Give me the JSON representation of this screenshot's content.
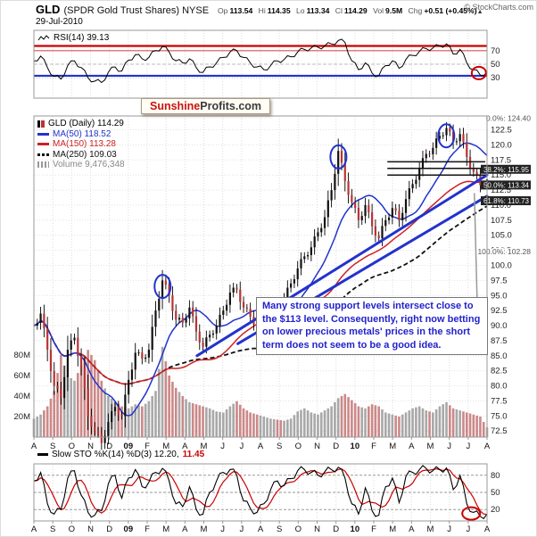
{
  "header": {
    "symbol": "GLD",
    "name": "(SPDR Gold Trust Shares) NYSE",
    "date": "29-Jul-2010",
    "copyright": "© StockCharts.com",
    "quote": {
      "op_label": "Op",
      "op": "113.54",
      "hi_label": "Hi",
      "hi": "114.35",
      "lo_label": "Lo",
      "lo": "113.34",
      "cl_label": "Cl",
      "cl": "114.29",
      "vol_label": "Vol",
      "vol": "9.5M",
      "chg_label": "Chg",
      "chg": "+0.51 (+0.45%)"
    }
  },
  "logo": {
    "part1": "Sunshine",
    "part2": "Profits.com"
  },
  "rsi_panel": {
    "label": "RSI(14) 39.13",
    "axis_labels": [
      "70",
      "50",
      "30"
    ]
  },
  "main_panel": {
    "legend": [
      {
        "label": "GLD (Daily) 114.29",
        "color": "#000000"
      },
      {
        "label": "MA(50) 118.52",
        "color": "#2233cc"
      },
      {
        "label": "MA(150) 113.28",
        "color": "#cc2222"
      },
      {
        "label": "MA(250) 109.03",
        "color": "#111111"
      },
      {
        "label": "Volume 9,476,348",
        "color": "#888888"
      }
    ],
    "y_axis": [
      "122.5",
      "120.0",
      "117.5",
      "115.0",
      "112.5",
      "110.0",
      "107.5",
      "105.0",
      "102.5",
      "100.0",
      "97.5",
      "95.0",
      "92.5",
      "90.0",
      "87.5",
      "85.0",
      "82.5",
      "80.0",
      "77.5",
      "75.0",
      "72.5"
    ],
    "vol_axis": [
      "80M",
      "60M",
      "40M",
      "20M"
    ],
    "fib_labels": [
      "0.0%: 124.40",
      "38.2%: 115.95",
      "50.0%: 113.34",
      "61.8%: 110.73",
      "100.0%: 102.28"
    ],
    "annotation": "Many strong support levels intersect close to the $113 level. Consequently, right now betting on lower precious metals' prices in the short term does not seem to be a good idea."
  },
  "sto_panel": {
    "label": "Slow STO %K(14) %D(3) 12.20,",
    "d_value": "11.45",
    "axis_labels": [
      "80",
      "50",
      "20"
    ]
  },
  "x_labels": [
    "A",
    "S",
    "O",
    "N",
    "D",
    "09",
    "F",
    "M",
    "A",
    "M",
    "J",
    "J",
    "A",
    "S",
    "O",
    "N",
    "D",
    "10",
    "F",
    "M",
    "A",
    "M",
    "J",
    "J",
    "A"
  ],
  "chart_data": [
    {
      "panel": "rsi",
      "type": "line",
      "title": "RSI(14)",
      "last_value": 39.13,
      "ylim": [
        0,
        100
      ],
      "levels": [
        70,
        50,
        30
      ],
      "red_lines": [
        77,
        70
      ],
      "blue_lines": [
        33
      ],
      "end_circle": {
        "x": 0.982,
        "value": 37
      },
      "values": [
        55,
        62,
        45,
        32,
        28,
        48,
        55,
        45,
        30,
        25,
        23,
        38,
        46,
        40,
        56,
        64,
        58,
        60,
        70,
        76,
        68,
        55,
        52,
        58,
        45,
        38,
        46,
        52,
        60,
        68,
        70,
        60,
        52,
        46,
        42,
        48,
        55,
        57,
        61,
        68,
        72,
        74,
        75,
        77,
        80,
        85,
        82,
        55,
        42,
        52,
        37,
        33,
        48,
        55,
        44,
        57,
        63,
        69,
        73,
        74,
        77,
        80,
        65,
        72,
        52,
        42,
        34,
        39.13
      ]
    },
    {
      "panel": "price",
      "type": "candlestick",
      "title": "GLD (Daily)",
      "last_close": 114.29,
      "ylim": [
        71.5,
        124.8
      ],
      "x_start": "Aug 2008",
      "x_end": "Jul 2010",
      "close": [
        90,
        92,
        86,
        80,
        78,
        86,
        88,
        83,
        75,
        72.5,
        70.5,
        74,
        76.5,
        75,
        81,
        85.5,
        84.5,
        86,
        92.5,
        97.5,
        95,
        91,
        90.5,
        93,
        89,
        86.5,
        88.5,
        90,
        92.5,
        95.5,
        96,
        93,
        91.5,
        90,
        91.5,
        93,
        93.5,
        94.5,
        97,
        99.5,
        101.5,
        103,
        105.5,
        108,
        112.5,
        119,
        114,
        110.5,
        107.5,
        110,
        106.5,
        104.5,
        107.5,
        109.5,
        107.5,
        111,
        113.5,
        116,
        118.5,
        119.5,
        121.5,
        122.8,
        120.5,
        121.8,
        118,
        115.5,
        113.3,
        114.3
      ],
      "volume_millions": [
        18,
        22,
        30,
        45,
        80,
        60,
        55,
        70,
        85,
        75,
        55,
        40,
        35,
        30,
        28,
        32,
        30,
        35,
        45,
        88,
        60,
        48,
        40,
        34,
        32,
        30,
        28,
        25,
        24,
        30,
        35,
        28,
        24,
        22,
        20,
        18,
        17,
        16,
        18,
        25,
        28,
        24,
        22,
        26,
        30,
        38,
        42,
        36,
        30,
        28,
        32,
        30,
        24,
        22,
        20,
        24,
        28,
        30,
        26,
        24,
        30,
        34,
        28,
        26,
        24,
        22,
        20,
        9.5
      ],
      "moving_averages": {
        "ma50": 118.52,
        "ma150": 113.28,
        "ma250": 109.03
      },
      "trendlines": [
        {
          "x1": 0.36,
          "p1": 85.0,
          "x2": 1.0,
          "p2": 115.0
        },
        {
          "x1": 0.45,
          "p1": 87.0,
          "x2": 1.0,
          "p2": 111.5
        }
      ],
      "resistance_levels": [
        {
          "price": 117.2,
          "x1": 0.78
        },
        {
          "price": 116.1,
          "x1": 0.78
        },
        {
          "price": 115.0,
          "x1": 0.78
        }
      ],
      "fibonacci": [
        124.4,
        115.95,
        113.34,
        110.73,
        102.28
      ],
      "circles": [
        {
          "x": 0.284,
          "price": 96.5
        },
        {
          "x": 0.672,
          "price": 118.0
        },
        {
          "x": 0.91,
          "price": 121.5
        }
      ],
      "annotation_pointer": {
        "x": 0.972,
        "price": 112
      }
    },
    {
      "panel": "stochastic",
      "type": "line",
      "title": "Slow STO %K(14) %D(3)",
      "k_last": 12.2,
      "d_last": 11.45,
      "ylim": [
        0,
        100
      ],
      "levels": [
        80,
        50,
        20
      ],
      "end_circle": {
        "x": 0.965,
        "value": 13
      },
      "k_values": [
        70,
        85,
        30,
        12,
        20,
        75,
        88,
        45,
        15,
        10,
        18,
        65,
        80,
        40,
        75,
        90,
        60,
        68,
        85,
        92,
        70,
        30,
        25,
        60,
        20,
        12,
        50,
        70,
        85,
        90,
        80,
        35,
        22,
        15,
        30,
        55,
        70,
        62,
        74,
        88,
        90,
        85,
        80,
        86,
        90,
        94,
        75,
        30,
        12,
        58,
        18,
        10,
        60,
        75,
        32,
        78,
        85,
        90,
        92,
        88,
        90,
        93,
        55,
        80,
        30,
        15,
        8,
        12.2
      ]
    }
  ]
}
